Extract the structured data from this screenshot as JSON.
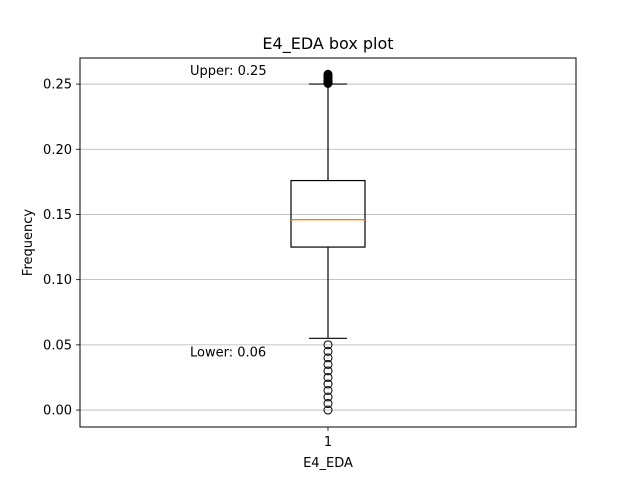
{
  "chart_data": {
    "type": "box",
    "title": "E4_EDA box plot",
    "xlabel": "E4_EDA",
    "ylabel": "Frequency",
    "categories": [
      "1"
    ],
    "ylim": [
      -0.013,
      0.27
    ],
    "yticks": [
      0.0,
      0.05,
      0.1,
      0.15,
      0.2,
      0.25
    ],
    "ytick_labels": [
      "0.00",
      "0.05",
      "0.10",
      "0.15",
      "0.20",
      "0.25"
    ],
    "grid": "horizontal",
    "box": {
      "whisker_low": 0.055,
      "q1": 0.125,
      "median": 0.146,
      "q3": 0.176,
      "whisker_high": 0.25
    },
    "outliers_high": [
      0.2505,
      0.2515,
      0.2525,
      0.2535,
      0.2545,
      0.2555,
      0.2565,
      0.2575
    ],
    "outliers_low": [
      0.05,
      0.045,
      0.04,
      0.035,
      0.03,
      0.025,
      0.02,
      0.015,
      0.01,
      0.005,
      0.0
    ],
    "annotations": [
      {
        "text": "Upper: 0.25",
        "x": 0.5,
        "y": 0.26
      },
      {
        "text": "Lower: 0.06",
        "x": 0.5,
        "y": 0.044
      }
    ],
    "colors": {
      "median": "#ff7f0e",
      "box": "#000000",
      "grid": "#b0b0b0"
    }
  }
}
